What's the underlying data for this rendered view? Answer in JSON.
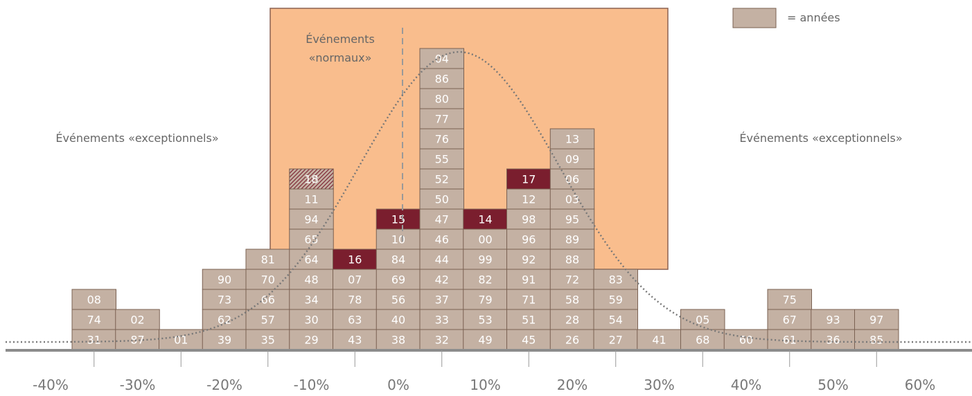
{
  "colors": {
    "box": "#c4b1a3",
    "box_border": "#7a6152",
    "highlight": "#7a1e2e",
    "normal_zone": "#f9bd8d",
    "normal_zone_border": "#8b6150",
    "axis": "#8c8c8c",
    "curve": "#777777",
    "label": "#666666",
    "cell_text": "#ffffff"
  },
  "legend": {
    "label": "= années"
  },
  "annotations": {
    "normal_line1": "Événements",
    "normal_line2": "«normaux»",
    "exceptional_left": "Événements «exceptionnels»",
    "exceptional_right": "Événements «exceptionnels»"
  },
  "chart_data": {
    "type": "bar",
    "layout": "stacked histogram of labeled years",
    "x_tick_labels": [
      "-40%",
      "-30%",
      "-20%",
      "-10%",
      "0%",
      "10%",
      "20%",
      "30%",
      "40%",
      "50%",
      "60%"
    ],
    "x_range": [
      -40,
      60
    ],
    "normal_range": [
      -15,
      30
    ],
    "mean_line": 0,
    "overlay": "dotted normal distribution curve",
    "bins": [
      {
        "center": -35,
        "years": [
          "31",
          "74",
          "08"
        ]
      },
      {
        "center": -30,
        "years": [
          "87",
          "02"
        ]
      },
      {
        "center": -25,
        "years": [
          "01"
        ]
      },
      {
        "center": -20,
        "years": [
          "39",
          "62",
          "73",
          "90"
        ]
      },
      {
        "center": -15,
        "years": [
          "35",
          "57",
          "66",
          "70",
          "81"
        ]
      },
      {
        "center": -10,
        "years": [
          "29",
          "30",
          "34",
          "48",
          "64",
          "65",
          "94",
          "11",
          "18"
        ],
        "hatched": [
          "18"
        ]
      },
      {
        "center": -5,
        "years": [
          "43",
          "63",
          "78",
          "07",
          "16"
        ],
        "highlight": [
          "16"
        ]
      },
      {
        "center": 0,
        "years": [
          "38",
          "40",
          "56",
          "69",
          "84",
          "10",
          "15"
        ],
        "highlight": [
          "15"
        ]
      },
      {
        "center": 5,
        "years": [
          "32",
          "33",
          "37",
          "42",
          "44",
          "46",
          "47",
          "50",
          "52",
          "55",
          "76",
          "77",
          "80",
          "86",
          "04"
        ]
      },
      {
        "center": 10,
        "years": [
          "49",
          "53",
          "79",
          "82",
          "99",
          "00",
          "14"
        ],
        "highlight": [
          "14"
        ]
      },
      {
        "center": 15,
        "years": [
          "45",
          "51",
          "71",
          "91",
          "92",
          "96",
          "98",
          "12",
          "17"
        ],
        "highlight": [
          "17"
        ]
      },
      {
        "center": 20,
        "years": [
          "26",
          "28",
          "58",
          "72",
          "88",
          "89",
          "95",
          "03",
          "06",
          "09",
          "13"
        ]
      },
      {
        "center": 25,
        "years": [
          "27",
          "54",
          "59",
          "83"
        ]
      },
      {
        "center": 30,
        "years": [
          "41"
        ]
      },
      {
        "center": 35,
        "years": [
          "68",
          "05"
        ]
      },
      {
        "center": 40,
        "years": [
          "60"
        ]
      },
      {
        "center": 45,
        "years": [
          "61",
          "67",
          "75"
        ]
      },
      {
        "center": 50,
        "years": [
          "36",
          "93"
        ]
      },
      {
        "center": 55,
        "years": [
          "85",
          "97"
        ]
      }
    ]
  }
}
